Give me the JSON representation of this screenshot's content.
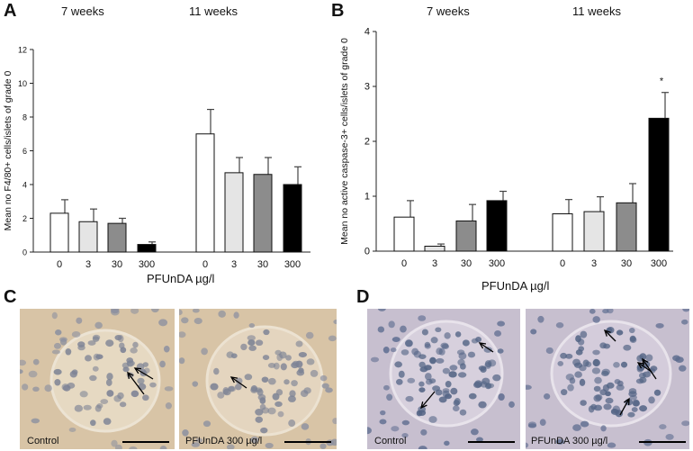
{
  "panels": {
    "a": "A",
    "b": "B",
    "c": "C",
    "d": "D"
  },
  "chart_data": [
    {
      "type": "bar",
      "panel": "A",
      "ylabel": "Mean no F4/80+ cells/islets of grade 0",
      "xlabel": "PFUnDA µg/l",
      "groups": [
        "7 weeks",
        "11 weeks"
      ],
      "categories": [
        "0",
        "3",
        "30",
        "300",
        "0",
        "3",
        "30",
        "300"
      ],
      "values": [
        2.3,
        1.8,
        1.7,
        0.45,
        7.0,
        4.7,
        4.6,
        4.0
      ],
      "errors": [
        0.8,
        0.75,
        0.3,
        0.15,
        1.45,
        0.9,
        1.0,
        1.05
      ],
      "fills": [
        "#ffffff",
        "#e5e5e5",
        "#8c8c8c",
        "#000000",
        "#ffffff",
        "#e5e5e5",
        "#8c8c8c",
        "#000000"
      ],
      "ylim": [
        0,
        12
      ],
      "yticks": [
        "0",
        "2",
        "4",
        "6",
        "8",
        "10",
        "12"
      ],
      "annotations": []
    },
    {
      "type": "bar",
      "panel": "B",
      "ylabel": "Mean no active caspase-3+ cells/islets of grade 0",
      "xlabel": "PFUnDA µg/l",
      "groups": [
        "7 weeks",
        "11 weeks"
      ],
      "categories": [
        "0",
        "3",
        "30",
        "300",
        "0",
        "3",
        "30",
        "300"
      ],
      "values": [
        0.62,
        0.09,
        0.55,
        0.92,
        0.68,
        0.72,
        0.88,
        2.42
      ],
      "errors": [
        0.3,
        0.04,
        0.3,
        0.17,
        0.26,
        0.27,
        0.35,
        0.47
      ],
      "fills": [
        "#ffffff",
        "#e5e5e5",
        "#8c8c8c",
        "#000000",
        "#ffffff",
        "#e5e5e5",
        "#8c8c8c",
        "#000000"
      ],
      "ylim": [
        0,
        4
      ],
      "yticks": [
        "0",
        "1",
        "2",
        "3",
        "4"
      ],
      "annotations": [
        {
          "index": 7,
          "text": "*"
        }
      ]
    }
  ],
  "micrographs": {
    "c_left_label": "Control",
    "c_right_label": "PFUnDA 300 µg/l",
    "d_left_label": "Control",
    "d_right_label": "PFUnDA 300 µg/l"
  },
  "colors": {
    "tissue_c": "#d8c4a6",
    "tissue_d": "#c7bfcf",
    "nucleus_c": "#8a8fa0",
    "nucleus_d": "#5d6c8f"
  }
}
